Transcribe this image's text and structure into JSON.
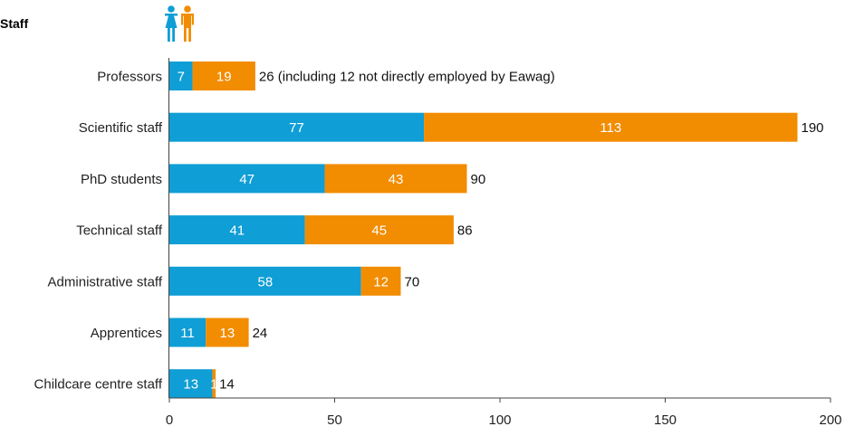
{
  "chart_data": {
    "type": "bar",
    "orientation": "horizontal",
    "stacked": true,
    "title": "Staff",
    "categories": [
      "Professors",
      "Scientific staff",
      "PhD students",
      "Technical staff",
      "Administrative staff",
      "Apprentices",
      "Childcare centre staff"
    ],
    "series": [
      {
        "color": "#0F9ED5",
        "icon": "female-person-icon",
        "values": [
          7,
          77,
          47,
          41,
          58,
          11,
          13
        ]
      },
      {
        "color": "#F28C00",
        "icon": "male-person-icon",
        "values": [
          19,
          113,
          43,
          45,
          12,
          13,
          1
        ]
      }
    ],
    "totals": [
      "26 (including 12 not directly employed by Eawag)",
      "190",
      "90",
      "86",
      "70",
      "24",
      "14"
    ],
    "xlim": [
      0,
      200
    ],
    "xticks": [
      0,
      50,
      100,
      150,
      200
    ],
    "grid": false,
    "legend": "icons-top"
  }
}
